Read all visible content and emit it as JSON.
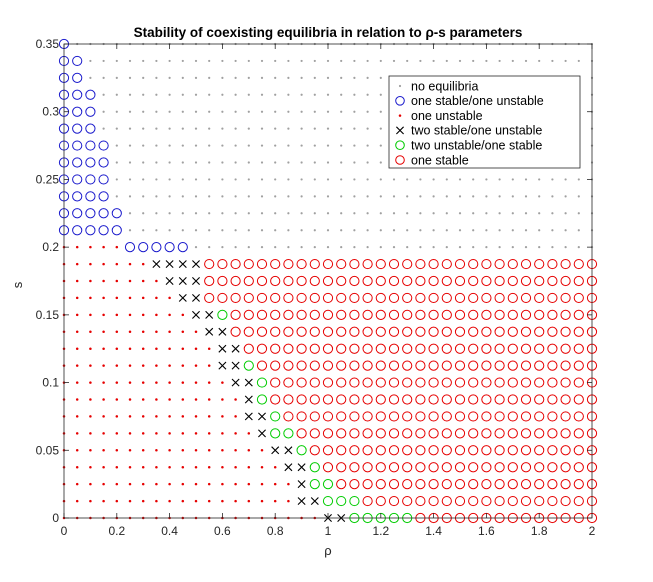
{
  "chart_data": {
    "type": "scatter",
    "title": "Stability of coexisting equilibria in relation to ρ-s parameters",
    "xlabel": "ρ",
    "ylabel": "s",
    "xlim": [
      0,
      2
    ],
    "ylim": [
      0,
      0.35
    ],
    "xticks": [
      "0",
      "0.2",
      "0.4",
      "0.6",
      "0.8",
      "1",
      "1.2",
      "1.4",
      "1.6",
      "1.8",
      "2"
    ],
    "yticks": [
      "0",
      "0.05",
      "0.1",
      "0.15",
      "0.2",
      "0.25",
      "0.3",
      "0.35"
    ],
    "grid": "off",
    "legend_position": "top-right",
    "grid_step": {
      "rho": 0.05,
      "s": 0.0125
    },
    "series": [
      {
        "name": "no equilibria",
        "marker": "dot",
        "color": "#a0a0a0"
      },
      {
        "name": "one stable/one unstable",
        "marker": "circle",
        "color": "#1a1acc"
      },
      {
        "name": "one unstable",
        "marker": "dot",
        "color": "#e60000"
      },
      {
        "name": "two stable/one unstable",
        "marker": "x",
        "color": "#000000"
      },
      {
        "name": "two unstable/one stable",
        "marker": "circle",
        "color": "#00cc00"
      },
      {
        "name": "one stable",
        "marker": "circle",
        "color": "#e60000"
      }
    ],
    "columns_by_row": [
      {
        "s": 0.35,
        "blue_end": 0.0
      },
      {
        "s": 0.3375,
        "blue_end": 0.05
      },
      {
        "s": 0.325,
        "blue_end": 0.05
      },
      {
        "s": 0.3125,
        "blue_end": 0.1
      },
      {
        "s": 0.3,
        "blue_end": 0.1
      },
      {
        "s": 0.2875,
        "blue_end": 0.1
      },
      {
        "s": 0.275,
        "blue_end": 0.15
      },
      {
        "s": 0.2625,
        "blue_end": 0.15
      },
      {
        "s": 0.25,
        "blue_end": 0.15
      },
      {
        "s": 0.2375,
        "blue_end": 0.15
      },
      {
        "s": 0.225,
        "blue_end": 0.2
      },
      {
        "s": 0.2125,
        "blue_end": 0.2
      },
      {
        "s": 0.2,
        "red_dot_end": 0.2,
        "blue_end": 0.45
      },
      {
        "s": 0.1875,
        "red_dot_end": 0.3,
        "x_end": 0.5
      },
      {
        "s": 0.175,
        "red_dot_end": 0.35,
        "x_end": 0.5
      },
      {
        "s": 0.1625,
        "red_dot_end": 0.4,
        "x_end": 0.5
      },
      {
        "s": 0.15,
        "red_dot_end": 0.45,
        "x_end": 0.55,
        "green_end": 0.6
      },
      {
        "s": 0.1375,
        "red_dot_end": 0.5,
        "x_end": 0.6
      },
      {
        "s": 0.125,
        "red_dot_end": 0.55,
        "x_end": 0.65
      },
      {
        "s": 0.1125,
        "red_dot_end": 0.55,
        "x_end": 0.65,
        "green_end": 0.7
      },
      {
        "s": 0.1,
        "red_dot_end": 0.6,
        "x_end": 0.7,
        "green_end": 0.75
      },
      {
        "s": 0.0875,
        "red_dot_end": 0.65,
        "x_end": 0.7,
        "green_end": 0.75
      },
      {
        "s": 0.075,
        "red_dot_end": 0.65,
        "x_end": 0.75,
        "green_end": 0.8
      },
      {
        "s": 0.0625,
        "red_dot_end": 0.7,
        "x_end": 0.75,
        "green_end": 0.85
      },
      {
        "s": 0.05,
        "red_dot_end": 0.75,
        "x_end": 0.85,
        "green_end": 0.9
      },
      {
        "s": 0.0375,
        "red_dot_end": 0.8,
        "x_end": 0.9,
        "green_end": 0.95
      },
      {
        "s": 0.025,
        "red_dot_end": 0.85,
        "x_end": 0.9,
        "green_end": 1.0
      },
      {
        "s": 0.0125,
        "red_dot_end": 0.85,
        "x_end": 0.95,
        "green_end": 1.1
      },
      {
        "s": 0.0,
        "red_dot_end": 0.95,
        "x_end": 1.05,
        "green_end": 1.3
      }
    ]
  }
}
